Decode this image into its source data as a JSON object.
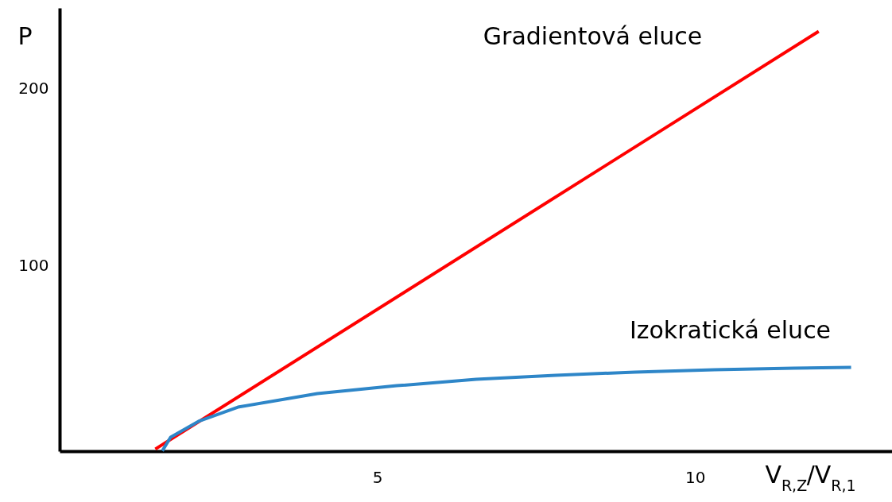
{
  "chart_data": {
    "type": "line",
    "xlabel": "V$_{R,Z}$/V$_{R,1}$",
    "ylabel": "P",
    "xlim": [
      0,
      13.1
    ],
    "ylim": [
      -5.4,
      245
    ],
    "xticks": [
      5,
      10
    ],
    "yticks": [
      100,
      200
    ],
    "grid": false,
    "series": [
      {
        "color": "#ff0000",
        "x": [
          1.5,
          11.94
        ],
        "values": [
          -4,
          232
        ]
      },
      {
        "color": "#2e86c8",
        "x": [
          1.61,
          1.74,
          2.18,
          2.8,
          4.05,
          5.3,
          6.55,
          7.8,
          9.05,
          10.3,
          11.55,
          12.45
        ],
        "values": [
          -5,
          2.7,
          11.7,
          19.7,
          27.4,
          31.8,
          35.4,
          37.7,
          39.5,
          40.8,
          41.7,
          42.2
        ]
      }
    ],
    "annotations": [
      "Gradientová eluce",
      "Izokratická eluce"
    ]
  }
}
